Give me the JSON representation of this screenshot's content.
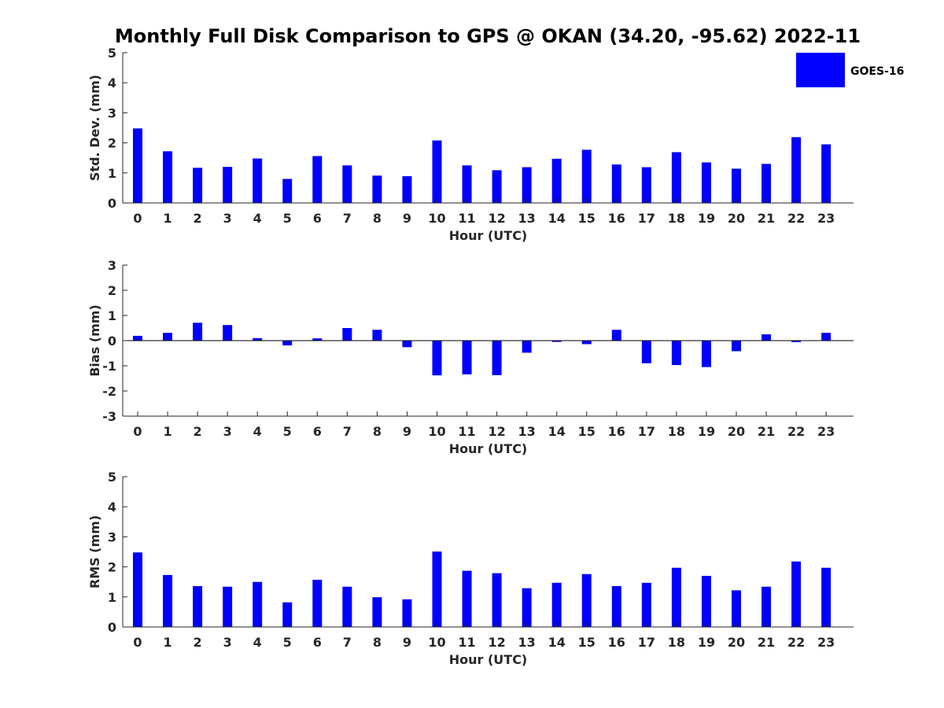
{
  "title": "Monthly Full Disk Comparison to GPS @ OKAN (34.20, -95.62) 2022-11",
  "legend": {
    "label": "GOES-16",
    "color": "#0000ff"
  },
  "chart_data": [
    {
      "type": "bar",
      "xlabel": "Hour (UTC)",
      "ylabel": "Std. Dev. (mm)",
      "ylim": [
        0,
        5
      ],
      "yticks": [
        0,
        1,
        2,
        3,
        4,
        5
      ],
      "categories": [
        "0",
        "1",
        "2",
        "3",
        "4",
        "5",
        "6",
        "7",
        "8",
        "9",
        "10",
        "11",
        "12",
        "13",
        "14",
        "15",
        "16",
        "17",
        "18",
        "19",
        "20",
        "21",
        "22",
        "23"
      ],
      "series": [
        {
          "name": "GOES-16",
          "values": [
            2.48,
            1.72,
            1.17,
            1.2,
            1.48,
            0.8,
            1.56,
            1.25,
            0.91,
            0.89,
            2.08,
            1.25,
            1.09,
            1.19,
            1.47,
            1.77,
            1.28,
            1.19,
            1.69,
            1.35,
            1.14,
            1.3,
            2.19,
            1.95
          ]
        }
      ]
    },
    {
      "type": "bar",
      "xlabel": "Hour (UTC)",
      "ylabel": "Bias (mm)",
      "ylim": [
        -3,
        3
      ],
      "yticks": [
        -3,
        -2,
        -1,
        0,
        1,
        2,
        3
      ],
      "categories": [
        "0",
        "1",
        "2",
        "3",
        "4",
        "5",
        "6",
        "7",
        "8",
        "9",
        "10",
        "11",
        "12",
        "13",
        "14",
        "15",
        "16",
        "17",
        "18",
        "19",
        "20",
        "21",
        "22",
        "23"
      ],
      "series": [
        {
          "name": "GOES-16",
          "values": [
            0.19,
            0.31,
            0.71,
            0.62,
            0.1,
            -0.19,
            0.09,
            0.5,
            0.43,
            -0.26,
            -1.38,
            -1.34,
            -1.37,
            -0.48,
            -0.05,
            -0.14,
            0.43,
            -0.9,
            -0.97,
            -1.05,
            -0.42,
            0.25,
            -0.06,
            0.31
          ]
        }
      ]
    },
    {
      "type": "bar",
      "xlabel": "Hour (UTC)",
      "ylabel": "RMS (mm)",
      "ylim": [
        0,
        5
      ],
      "yticks": [
        0,
        1,
        2,
        3,
        4,
        5
      ],
      "categories": [
        "0",
        "1",
        "2",
        "3",
        "4",
        "5",
        "6",
        "7",
        "8",
        "9",
        "10",
        "11",
        "12",
        "13",
        "14",
        "15",
        "16",
        "17",
        "18",
        "19",
        "20",
        "21",
        "22",
        "23"
      ],
      "series": [
        {
          "name": "GOES-16",
          "values": [
            2.48,
            1.73,
            1.36,
            1.34,
            1.5,
            0.82,
            1.57,
            1.34,
            0.99,
            0.92,
            2.51,
            1.87,
            1.79,
            1.29,
            1.47,
            1.76,
            1.36,
            1.47,
            1.97,
            1.7,
            1.22,
            1.34,
            2.18,
            1.97
          ]
        }
      ]
    }
  ]
}
